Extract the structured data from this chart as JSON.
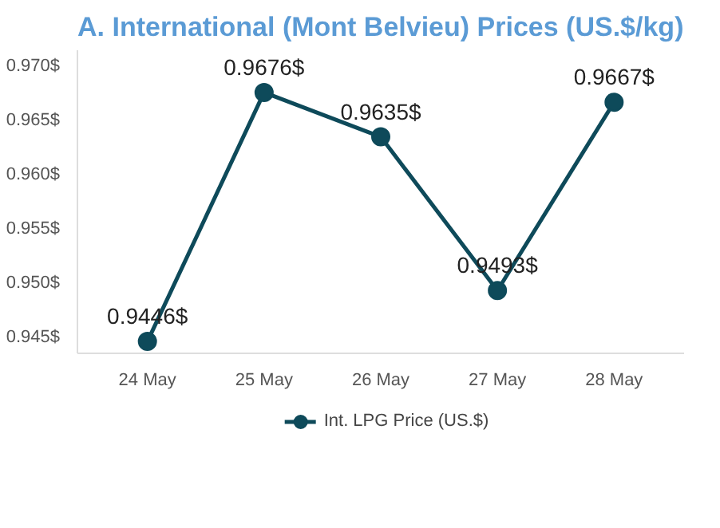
{
  "chart_data": {
    "type": "line",
    "title": "A.  International (Mont Belvieu) Prices (US.$/kg)",
    "categories": [
      "24 May",
      "25 May",
      "26 May",
      "27 May",
      "28 May"
    ],
    "series": [
      {
        "name": "Int. LPG Price (US.$)",
        "color": "#0e4a5a",
        "values": [
          0.9446,
          0.9676,
          0.9635,
          0.9493,
          0.9667
        ],
        "value_labels": [
          "0.9446$",
          "0.9676$",
          "0.9635$",
          "0.9493$",
          "0.9667$"
        ]
      }
    ],
    "ylim": [
      0.9435,
      0.9715
    ],
    "yticks": [
      {
        "value": 0.945,
        "label": "0.945$"
      },
      {
        "value": 0.95,
        "label": "0.950$"
      },
      {
        "value": 0.955,
        "label": "0.955$"
      },
      {
        "value": 0.96,
        "label": "0.960$"
      },
      {
        "value": 0.965,
        "label": "0.965$"
      },
      {
        "value": 0.97,
        "label": "0.970$"
      }
    ],
    "marker": "circle",
    "legend": "bottom",
    "grid": false
  }
}
